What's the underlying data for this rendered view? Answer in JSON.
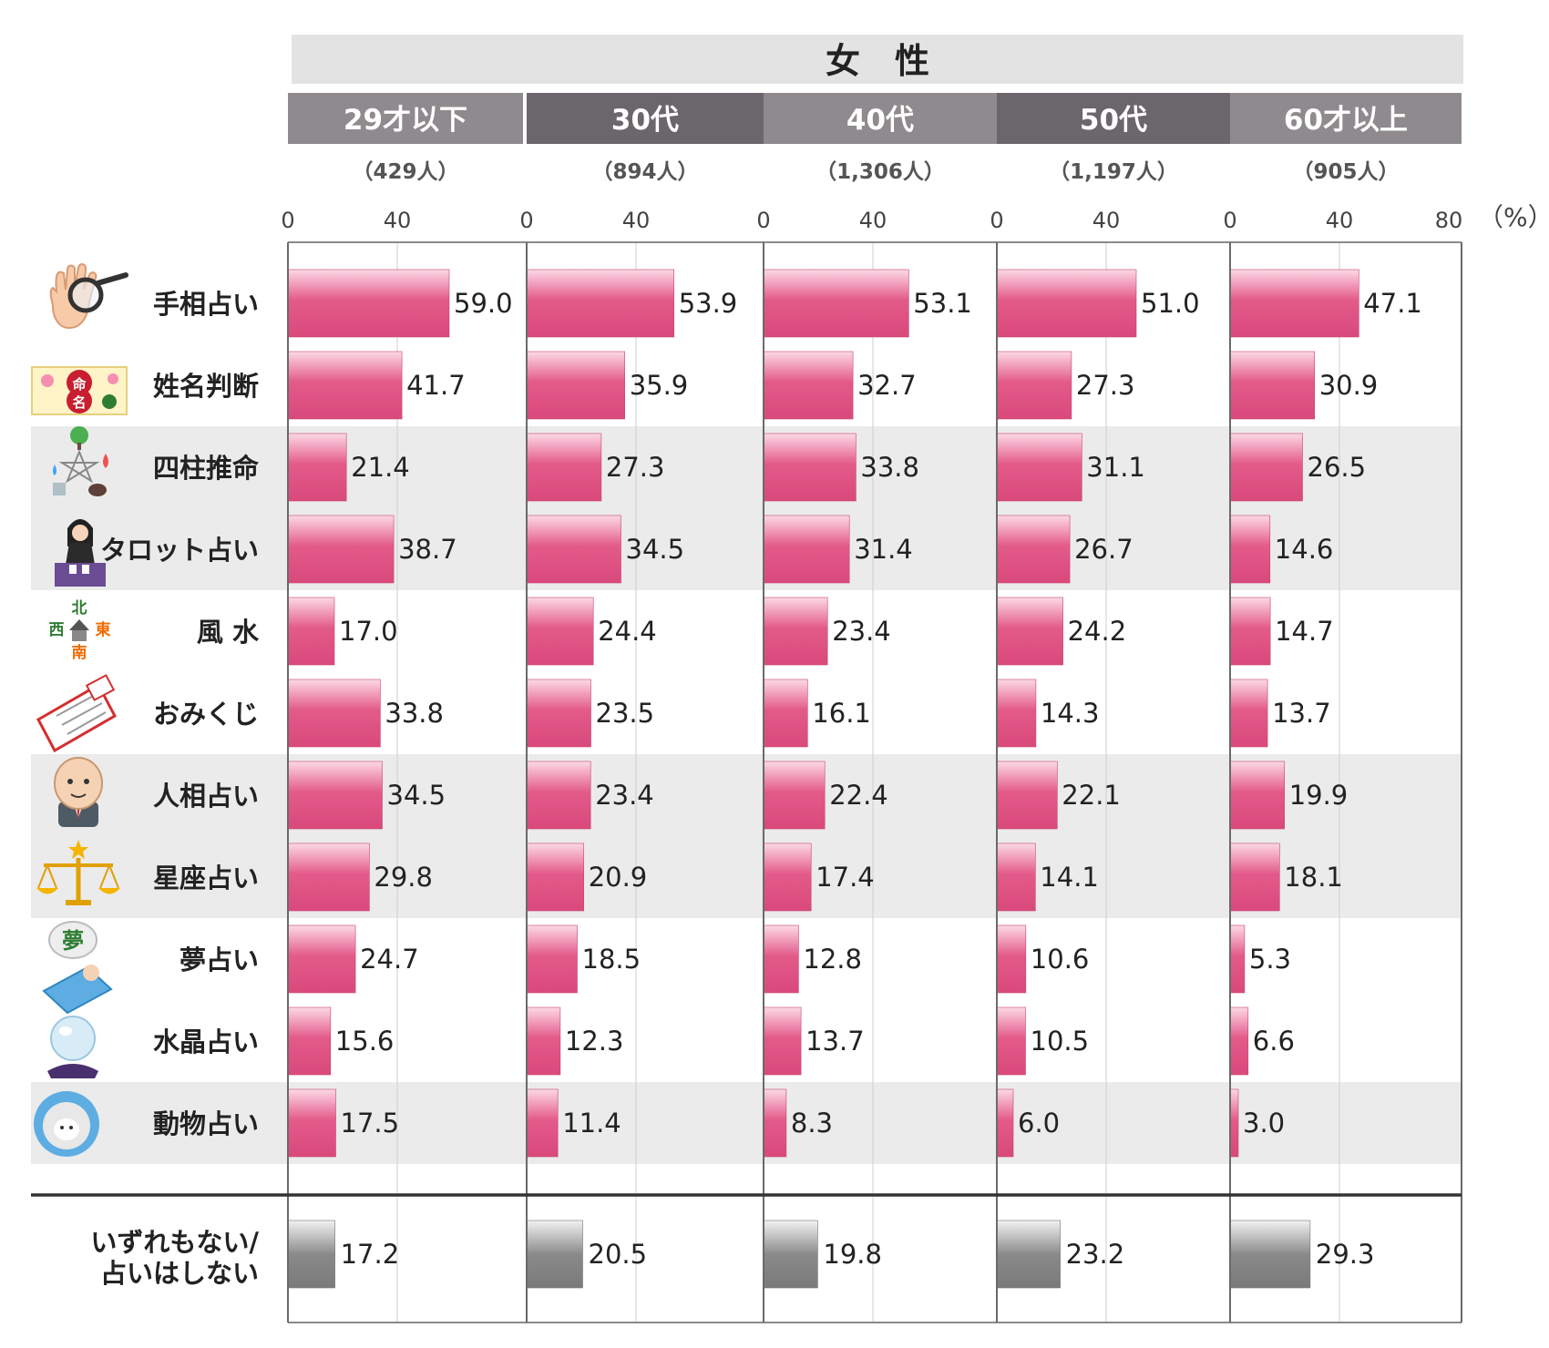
{
  "header": {
    "title": "女　性"
  },
  "axis": {
    "ticks": [
      "0",
      "40"
    ],
    "last_tick": "80",
    "unit": "（%）"
  },
  "groups": [
    {
      "label": "29才以下",
      "n": "（429人）",
      "color": "#8e8a8e"
    },
    {
      "label": "30代",
      "n": "（894人）",
      "color": "#6b666b"
    },
    {
      "label": "40代",
      "n": "（1,306人）",
      "color": "#8e8a8e"
    },
    {
      "label": "50代",
      "n": "（1,197人）",
      "color": "#6b666b"
    },
    {
      "label": "60才以上",
      "n": "（905人）",
      "color": "#8e8a8e"
    }
  ],
  "colors": {
    "bar": "#e35b8a",
    "bar_light": "#f6c5d6",
    "other_bar": "#8a8a8a",
    "band": "#ebebeb"
  },
  "icons": [
    "palm-magnifier-icon",
    "name-scroll-icon",
    "five-elements-icon",
    "tarot-reader-icon",
    "compass-house-icon",
    "omikuji-fortune-icon",
    "face-reading-icon",
    "libra-scales-icon",
    "dream-sleeper-icon",
    "crystal-ball-icon",
    "sheep-icon"
  ],
  "chart_data": {
    "type": "bar",
    "orientation": "horizontal",
    "title": "女　性",
    "categories": [
      "手相占い",
      "姓名判断",
      "四柱推命",
      "タロット占い",
      "風 水",
      "おみくじ",
      "人相占い",
      "星座占い",
      "夢占い",
      "水晶占い",
      "動物占い"
    ],
    "other_category": [
      "いずれもない/",
      "占いはしない"
    ],
    "xlim": [
      0,
      80
    ],
    "unit": "%",
    "grid": true,
    "series": [
      {
        "name": "29才以下",
        "values": [
          59.0,
          41.7,
          21.4,
          38.7,
          17.0,
          33.8,
          34.5,
          29.8,
          24.7,
          15.6,
          17.5
        ],
        "other": 17.2
      },
      {
        "name": "30代",
        "values": [
          53.9,
          35.9,
          27.3,
          34.5,
          24.4,
          23.5,
          23.4,
          20.9,
          18.5,
          12.3,
          11.4
        ],
        "other": 20.5
      },
      {
        "name": "40代",
        "values": [
          53.1,
          32.7,
          33.8,
          31.4,
          23.4,
          16.1,
          22.4,
          17.4,
          12.8,
          13.7,
          8.3
        ],
        "other": 19.8
      },
      {
        "name": "50代",
        "values": [
          51.0,
          27.3,
          31.1,
          26.7,
          24.2,
          14.3,
          22.1,
          14.1,
          10.6,
          10.5,
          6.0
        ],
        "other": 23.2
      },
      {
        "name": "60才以上",
        "values": [
          47.1,
          30.9,
          26.5,
          14.6,
          14.7,
          13.7,
          19.9,
          18.1,
          5.3,
          6.6,
          3.0
        ],
        "other": 29.3
      }
    ]
  }
}
